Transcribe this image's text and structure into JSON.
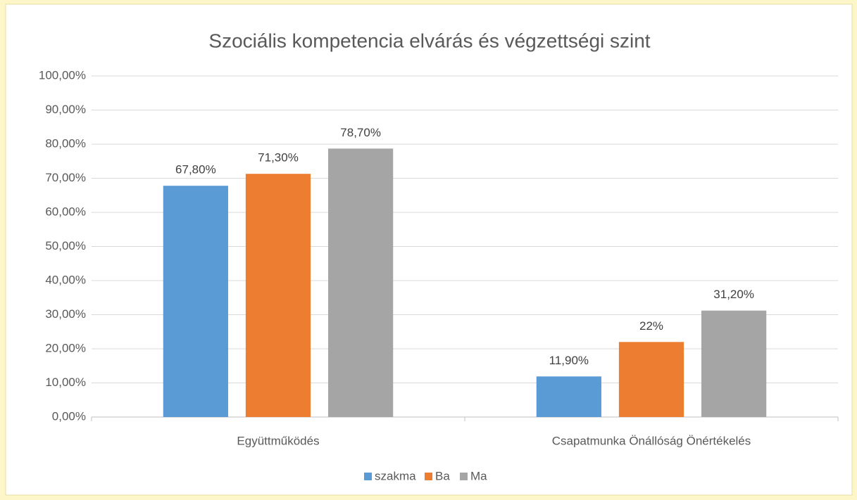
{
  "chart_data": {
    "type": "bar",
    "title": "Szociális kompetencia elvárás és végzettségi szint",
    "categories": [
      "Együttműködés",
      "Csapatmunka Önállóság Önértékelés"
    ],
    "series": [
      {
        "name": "szakma",
        "color": "#5b9bd5",
        "values": [
          67.8,
          11.9
        ],
        "value_labels": [
          "67,80%",
          "11,90%"
        ]
      },
      {
        "name": "Ba",
        "color": "#ed7d31",
        "values": [
          71.3,
          22
        ],
        "value_labels": [
          "71,30%",
          "22%"
        ]
      },
      {
        "name": "Ma",
        "color": "#a5a5a5",
        "values": [
          78.7,
          31.2
        ],
        "value_labels": [
          "78,70%",
          "31,20%"
        ]
      }
    ],
    "ylim": [
      0,
      100
    ],
    "yticks": [
      {
        "value": 0,
        "label": "0,00%"
      },
      {
        "value": 10,
        "label": "10,00%"
      },
      {
        "value": 20,
        "label": "20,00%"
      },
      {
        "value": 30,
        "label": "30,00%"
      },
      {
        "value": 40,
        "label": "40,00%"
      },
      {
        "value": 50,
        "label": "50,00%"
      },
      {
        "value": 60,
        "label": "60,00%"
      },
      {
        "value": 70,
        "label": "70,00%"
      },
      {
        "value": 80,
        "label": "80,00%"
      },
      {
        "value": 90,
        "label": "90,00%"
      },
      {
        "value": 100,
        "label": "100,00%"
      }
    ],
    "grid": true,
    "legend": "bottom"
  }
}
